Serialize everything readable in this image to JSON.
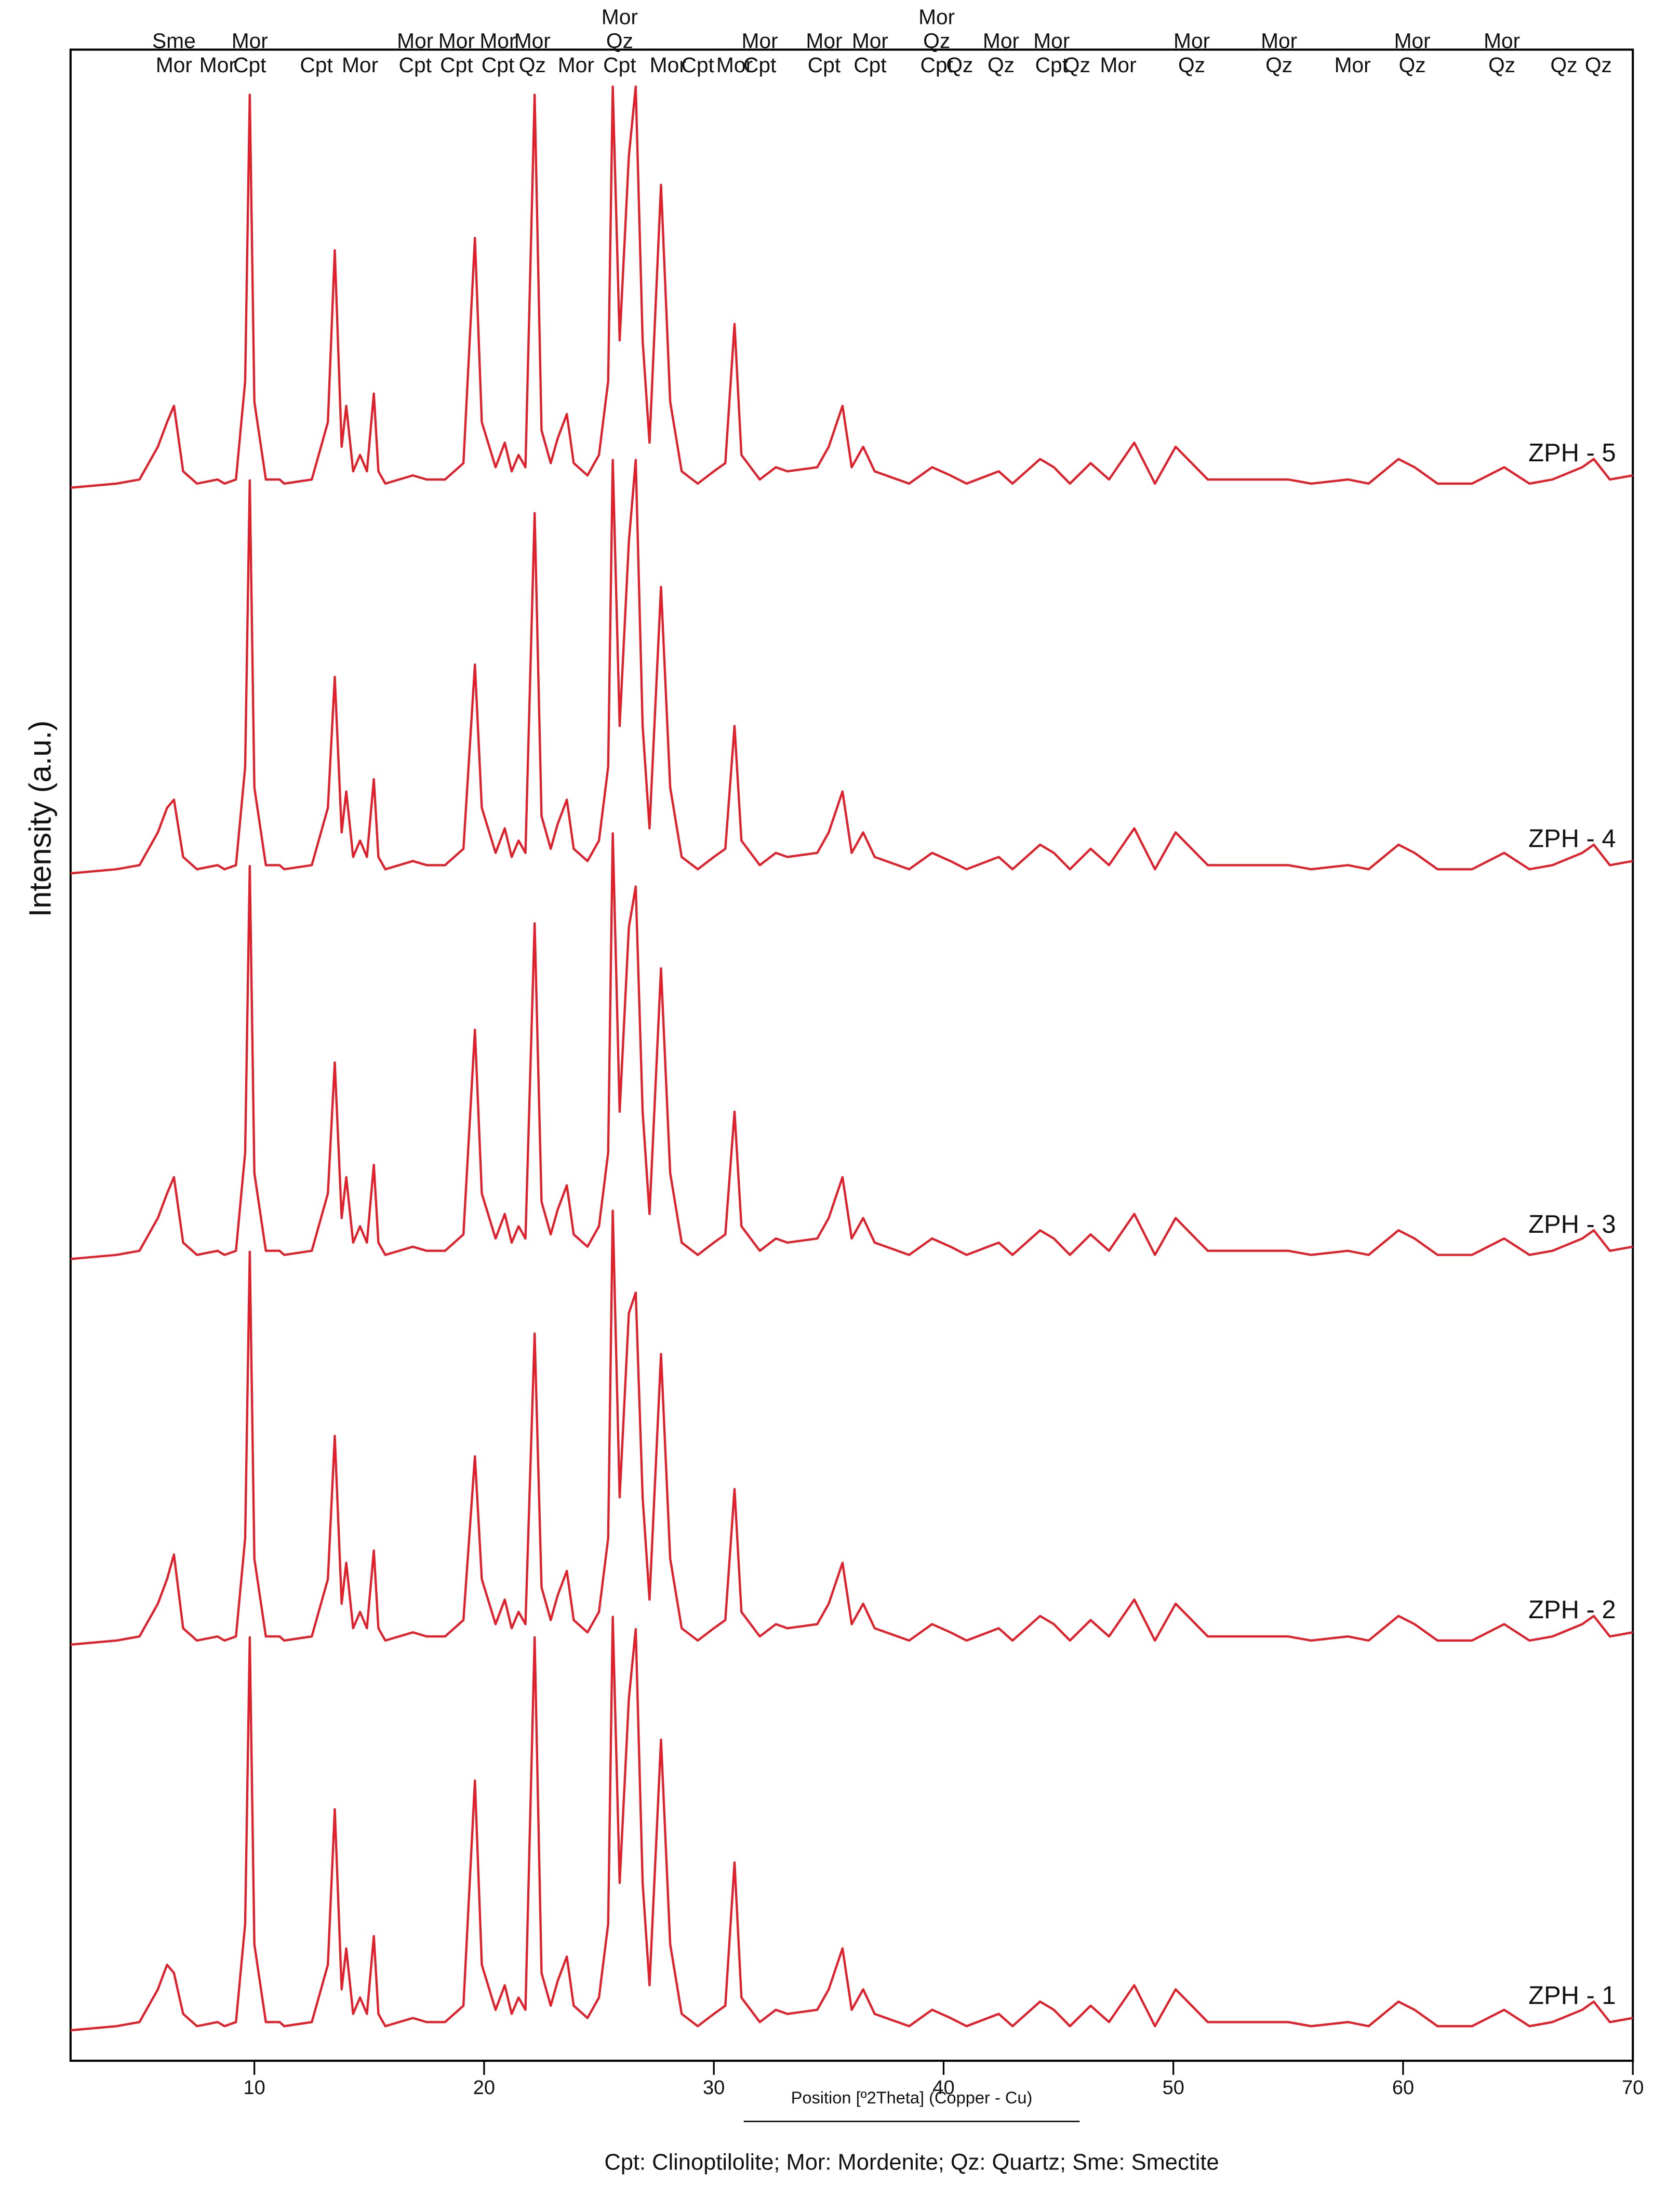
{
  "chart_data": {
    "type": "line",
    "x_label": "Position [º2Theta] (Copper - Cu)",
    "y_label": "Intensity (a.u.)",
    "footnote": "Cpt: Clinoptilolite; Mor: Mordenite; Qz: Quartz; Sme: Smectite",
    "xlim": [
      2,
      70
    ],
    "xticks": [
      10,
      20,
      30,
      40,
      50,
      60,
      70
    ],
    "phase_labels": [
      {
        "x": 6.5,
        "lines": [
          "Sme",
          "Mor"
        ]
      },
      {
        "x": 8.4,
        "lines": [
          "Mor"
        ]
      },
      {
        "x": 9.8,
        "lines": [
          "Mor",
          "Cpt"
        ]
      },
      {
        "x": 12.7,
        "lines": [
          "Cpt"
        ]
      },
      {
        "x": 14.6,
        "lines": [
          "Mor"
        ]
      },
      {
        "x": 17.0,
        "lines": [
          "Mor",
          "Cpt"
        ]
      },
      {
        "x": 18.8,
        "lines": [
          "Mor",
          "Cpt"
        ]
      },
      {
        "x": 20.6,
        "lines": [
          "Mor",
          "Cpt"
        ]
      },
      {
        "x": 22.1,
        "lines": [
          "Mor",
          "Qz"
        ]
      },
      {
        "x": 24.0,
        "lines": [
          "Mor"
        ]
      },
      {
        "x": 25.9,
        "lines": [
          "Mor",
          "Qz",
          "Cpt"
        ]
      },
      {
        "x": 28.0,
        "lines": [
          "Mor"
        ]
      },
      {
        "x": 29.3,
        "lines": [
          "Cpt"
        ]
      },
      {
        "x": 30.9,
        "lines": [
          "Mor"
        ]
      },
      {
        "x": 32.0,
        "lines": [
          "Mor",
          "Cpt"
        ]
      },
      {
        "x": 34.8,
        "lines": [
          "Mor",
          "Cpt"
        ]
      },
      {
        "x": 36.8,
        "lines": [
          "Mor",
          "Cpt"
        ]
      },
      {
        "x": 39.7,
        "lines": [
          "Mor",
          "Qz",
          "Cpt"
        ]
      },
      {
        "x": 40.7,
        "lines": [
          "Qz"
        ]
      },
      {
        "x": 42.5,
        "lines": [
          "Mor",
          "Qz"
        ]
      },
      {
        "x": 44.7,
        "lines": [
          "Mor",
          "Cpt"
        ]
      },
      {
        "x": 45.8,
        "lines": [
          "Qz"
        ]
      },
      {
        "x": 47.6,
        "lines": [
          "Mor"
        ]
      },
      {
        "x": 50.8,
        "lines": [
          "Mor",
          "Qz"
        ]
      },
      {
        "x": 54.6,
        "lines": [
          "Mor",
          "Qz"
        ]
      },
      {
        "x": 57.8,
        "lines": [
          "Mor"
        ]
      },
      {
        "x": 60.4,
        "lines": [
          "Mor",
          "Qz"
        ]
      },
      {
        "x": 64.3,
        "lines": [
          "Mor",
          "Qz"
        ]
      },
      {
        "x": 67.0,
        "lines": [
          "Qz"
        ]
      },
      {
        "x": 68.5,
        "lines": [
          "Qz"
        ]
      }
    ],
    "x": [
      2,
      4,
      5,
      5.8,
      6.2,
      6.5,
      6.9,
      7.5,
      8.4,
      8.7,
      9.2,
      9.6,
      9.8,
      10.0,
      10.5,
      11.1,
      11.3,
      12.5,
      13.2,
      13.5,
      13.8,
      14.0,
      14.3,
      14.6,
      14.9,
      15.2,
      15.4,
      15.7,
      16.9,
      17.5,
      18.3,
      19.1,
      19.6,
      19.9,
      20.5,
      20.9,
      21.2,
      21.5,
      21.8,
      22.2,
      22.5,
      22.9,
      23.2,
      23.6,
      23.9,
      24.5,
      25.0,
      25.4,
      25.6,
      25.9,
      26.3,
      26.6,
      26.9,
      27.2,
      27.7,
      28.1,
      28.6,
      29.3,
      30.0,
      30.5,
      30.9,
      31.2,
      32.0,
      32.7,
      33.2,
      34.5,
      35.0,
      35.6,
      36.0,
      36.5,
      37.0,
      38.5,
      39.5,
      40.3,
      41.0,
      42.4,
      43.0,
      44.2,
      44.8,
      45.5,
      46.4,
      47.2,
      48.3,
      49.2,
      50.1,
      50.8,
      51.5,
      53.0,
      54.0,
      55.0,
      56.0,
      57.6,
      58.5,
      59.8,
      60.5,
      61.5,
      63.0,
      64.4,
      65.5,
      66.5,
      67.8,
      68.3,
      69.0,
      70
    ],
    "series": [
      {
        "name": "ZPH - 5",
        "color": "#e0202a",
        "values": [
          4,
          5,
          6,
          14,
          20,
          24,
          8,
          5,
          6,
          5,
          6,
          30,
          100,
          25,
          6,
          6,
          5,
          6,
          20,
          62,
          14,
          24,
          8,
          12,
          8,
          27,
          8,
          5,
          7,
          6,
          6,
          10,
          65,
          20,
          9,
          15,
          8,
          12,
          9,
          100,
          18,
          10,
          16,
          22,
          10,
          7,
          12,
          30,
          102,
          40,
          85,
          102,
          40,
          15,
          78,
          25,
          8,
          5,
          8,
          10,
          44,
          12,
          6,
          9,
          8,
          9,
          14,
          24,
          9,
          14,
          8,
          5,
          9,
          7,
          5,
          8,
          5,
          11,
          9,
          5,
          10,
          6,
          15,
          5,
          14,
          10,
          6,
          6,
          6,
          6,
          5,
          6,
          5,
          11,
          9,
          5,
          5,
          9,
          5,
          6,
          9,
          11,
          6,
          7
        ]
      },
      {
        "name": "ZPH - 4",
        "color": "#e0202a",
        "values": [
          4,
          5,
          6,
          14,
          20,
          22,
          8,
          5,
          6,
          5,
          6,
          30,
          100,
          25,
          6,
          6,
          5,
          6,
          20,
          52,
          14,
          24,
          8,
          12,
          8,
          27,
          8,
          5,
          7,
          6,
          6,
          10,
          55,
          20,
          9,
          15,
          8,
          12,
          9,
          92,
          18,
          10,
          16,
          22,
          10,
          7,
          12,
          30,
          105,
          40,
          85,
          105,
          40,
          15,
          74,
          25,
          8,
          5,
          8,
          10,
          40,
          12,
          6,
          9,
          8,
          9,
          14,
          24,
          9,
          14,
          8,
          5,
          9,
          7,
          5,
          8,
          5,
          11,
          9,
          5,
          10,
          6,
          15,
          5,
          14,
          10,
          6,
          6,
          6,
          6,
          5,
          6,
          5,
          11,
          9,
          5,
          5,
          9,
          5,
          6,
          9,
          11,
          6,
          7
        ]
      },
      {
        "name": "ZPH - 3",
        "color": "#e0202a",
        "values": [
          4,
          5,
          6,
          14,
          20,
          24,
          8,
          5,
          6,
          5,
          6,
          30,
          100,
          25,
          6,
          6,
          5,
          6,
          20,
          52,
          14,
          24,
          8,
          12,
          8,
          27,
          8,
          5,
          7,
          6,
          6,
          10,
          60,
          20,
          9,
          15,
          8,
          12,
          9,
          86,
          18,
          10,
          16,
          22,
          10,
          7,
          12,
          30,
          108,
          40,
          85,
          95,
          40,
          15,
          75,
          25,
          8,
          5,
          8,
          10,
          40,
          12,
          6,
          9,
          8,
          9,
          14,
          24,
          9,
          14,
          8,
          5,
          9,
          7,
          5,
          8,
          5,
          11,
          9,
          5,
          10,
          6,
          15,
          5,
          14,
          10,
          6,
          6,
          6,
          6,
          5,
          6,
          5,
          11,
          9,
          5,
          5,
          9,
          5,
          6,
          9,
          11,
          6,
          7
        ]
      },
      {
        "name": "ZPH - 2",
        "color": "#e0202a",
        "values": [
          4,
          5,
          6,
          14,
          20,
          26,
          8,
          5,
          6,
          5,
          6,
          30,
          100,
          25,
          6,
          6,
          5,
          6,
          20,
          55,
          14,
          24,
          8,
          12,
          8,
          27,
          8,
          5,
          7,
          6,
          6,
          10,
          50,
          20,
          9,
          15,
          8,
          12,
          9,
          80,
          18,
          10,
          16,
          22,
          10,
          7,
          12,
          30,
          110,
          40,
          85,
          90,
          40,
          15,
          75,
          25,
          8,
          5,
          8,
          10,
          42,
          12,
          6,
          9,
          8,
          9,
          14,
          24,
          9,
          14,
          8,
          5,
          9,
          7,
          5,
          8,
          5,
          11,
          9,
          5,
          10,
          6,
          15,
          5,
          14,
          10,
          6,
          6,
          6,
          6,
          5,
          6,
          5,
          11,
          9,
          5,
          5,
          9,
          5,
          6,
          9,
          11,
          6,
          7
        ]
      },
      {
        "name": "ZPH - 1",
        "color": "#e0202a",
        "values": [
          4,
          5,
          6,
          14,
          20,
          18,
          8,
          5,
          6,
          5,
          6,
          30,
          100,
          25,
          6,
          6,
          5,
          6,
          20,
          58,
          14,
          24,
          8,
          12,
          8,
          27,
          8,
          5,
          7,
          6,
          6,
          10,
          65,
          20,
          9,
          15,
          8,
          12,
          9,
          100,
          18,
          10,
          16,
          22,
          10,
          7,
          12,
          30,
          105,
          40,
          85,
          102,
          40,
          15,
          75,
          25,
          8,
          5,
          8,
          10,
          45,
          12,
          6,
          9,
          8,
          9,
          14,
          24,
          9,
          14,
          8,
          5,
          9,
          7,
          5,
          8,
          5,
          11,
          9,
          5,
          10,
          6,
          15,
          5,
          14,
          10,
          6,
          6,
          6,
          6,
          5,
          6,
          5,
          11,
          9,
          5,
          5,
          9,
          5,
          6,
          9,
          11,
          6,
          7
        ]
      }
    ]
  }
}
